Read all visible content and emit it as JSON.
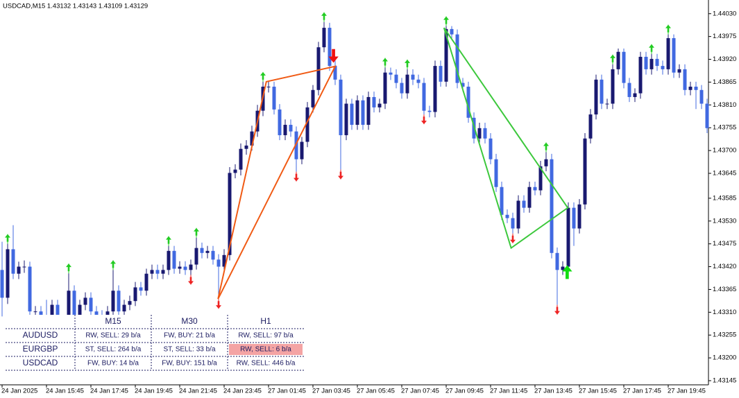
{
  "chart_data": {
    "type": "candlestick",
    "title": "USDCAD,M15  1.43132 1.43143 1.43109 1.43129",
    "bull_color": "#191970",
    "bear_color": "#4169e1",
    "ylim": [
      1.43135,
      1.44063
    ],
    "yticks": [
      {
        "value": 1.4403,
        "label": "1.44030"
      },
      {
        "value": 1.43975,
        "label": "1.43975"
      },
      {
        "value": 1.4392,
        "label": "1.43920"
      },
      {
        "value": 1.43865,
        "label": "1.43865"
      },
      {
        "value": 1.4381,
        "label": "1.43810"
      },
      {
        "value": 1.43755,
        "label": "1.43755"
      },
      {
        "value": 1.437,
        "label": "1.43700"
      },
      {
        "value": 1.43645,
        "label": "1.43645"
      },
      {
        "value": 1.43585,
        "label": "1.43585"
      },
      {
        "value": 1.4353,
        "label": "1.43530"
      },
      {
        "value": 1.43475,
        "label": "1.43475"
      },
      {
        "value": 1.4342,
        "label": "1.43420"
      },
      {
        "value": 1.43365,
        "label": "1.43365"
      },
      {
        "value": 1.4331,
        "label": "1.43310"
      },
      {
        "value": 1.43255,
        "label": "1.43255"
      },
      {
        "value": 1.432,
        "label": "1.43200"
      },
      {
        "value": 1.43145,
        "label": "1.43145"
      }
    ],
    "xticks": [
      {
        "value": 0,
        "label": "24 Jan 2025"
      },
      {
        "value": 8,
        "label": "24 Jan 15:45"
      },
      {
        "value": 16,
        "label": "24 Jan 17:45"
      },
      {
        "value": 24,
        "label": "24 Jan 19:45"
      },
      {
        "value": 32,
        "label": "24 Jan 21:45"
      },
      {
        "value": 40,
        "label": "24 Jan 23:45"
      },
      {
        "value": 48,
        "label": "27 Jan 01:45"
      },
      {
        "value": 56,
        "label": "27 Jan 03:45"
      },
      {
        "value": 64,
        "label": "27 Jan 05:45"
      },
      {
        "value": 72,
        "label": "27 Jan 07:45"
      },
      {
        "value": 80,
        "label": "27 Jan 09:45"
      },
      {
        "value": 88,
        "label": "27 Jan 11:45"
      },
      {
        "value": 96,
        "label": "27 Jan 13:45"
      },
      {
        "value": 104,
        "label": "27 Jan 15:45"
      },
      {
        "value": 112,
        "label": "27 Jan 17:45"
      },
      {
        "value": 120,
        "label": "27 Jan 19:45"
      }
    ],
    "candles": [
      [
        1.43412,
        1.4348,
        1.433,
        1.43345
      ],
      [
        1.43345,
        1.43475,
        1.4333,
        1.43462
      ],
      [
        1.43462,
        1.4352,
        1.4339,
        1.43403
      ],
      [
        1.43403,
        1.43432,
        1.4339,
        1.4342
      ],
      [
        1.4342,
        1.43435,
        1.43405,
        1.4342
      ],
      [
        1.4342,
        1.43432,
        1.433,
        1.43312
      ],
      [
        1.43312,
        1.43325,
        1.43295,
        1.43312
      ],
      [
        1.43312,
        1.43325,
        1.4328,
        1.43295
      ],
      [
        1.43295,
        1.4334,
        1.43275,
        1.43287
      ],
      [
        1.43287,
        1.4334,
        1.43275,
        1.43328
      ],
      [
        1.43328,
        1.4334,
        1.43265,
        1.43278
      ],
      [
        1.43278,
        1.433,
        1.43265,
        1.43287
      ],
      [
        1.43287,
        1.43404,
        1.43275,
        1.43362
      ],
      [
        1.43362,
        1.43375,
        1.43265,
        1.43278
      ],
      [
        1.43278,
        1.4334,
        1.43265,
        1.43328
      ],
      [
        1.43328,
        1.43358,
        1.43315,
        1.43345
      ],
      [
        1.43345,
        1.43358,
        1.433,
        1.43312
      ],
      [
        1.43312,
        1.43325,
        1.4329,
        1.43303
      ],
      [
        1.43303,
        1.43315,
        1.43283,
        1.43295
      ],
      [
        1.43295,
        1.43325,
        1.43283,
        1.43312
      ],
      [
        1.43312,
        1.43412,
        1.433,
        1.43362
      ],
      [
        1.43362,
        1.43375,
        1.433,
        1.43312
      ],
      [
        1.43312,
        1.4334,
        1.433,
        1.43328
      ],
      [
        1.43328,
        1.4335,
        1.43315,
        1.43337
      ],
      [
        1.43337,
        1.43383,
        1.43325,
        1.4337
      ],
      [
        1.4337,
        1.43383,
        1.4335,
        1.43362
      ],
      [
        1.43362,
        1.43415,
        1.4335,
        1.43403
      ],
      [
        1.43403,
        1.43425,
        1.4339,
        1.43412
      ],
      [
        1.43412,
        1.43425,
        1.4339,
        1.43403
      ],
      [
        1.43403,
        1.43425,
        1.4339,
        1.43412
      ],
      [
        1.43412,
        1.4347,
        1.434,
        1.43458
      ],
      [
        1.43458,
        1.4347,
        1.43403,
        1.43415
      ],
      [
        1.43415,
        1.43433,
        1.43403,
        1.4342
      ],
      [
        1.4342,
        1.43433,
        1.434,
        1.43412
      ],
      [
        1.43412,
        1.43437,
        1.434,
        1.43425
      ],
      [
        1.43425,
        1.4349,
        1.43413,
        1.43465
      ],
      [
        1.43465,
        1.43478,
        1.4344,
        1.43453
      ],
      [
        1.43453,
        1.4347,
        1.4344,
        1.43458
      ],
      [
        1.43458,
        1.4347,
        1.43425,
        1.43437
      ],
      [
        1.43437,
        1.4345,
        1.43342,
        1.4342
      ],
      [
        1.4342,
        1.43462,
        1.43408,
        1.43448
      ],
      [
        1.43448,
        1.4366,
        1.43435,
        1.43646
      ],
      [
        1.43646,
        1.43667,
        1.43633,
        1.43654
      ],
      [
        1.43654,
        1.43717,
        1.4364,
        1.43704
      ],
      [
        1.43704,
        1.43725,
        1.4369,
        1.43712
      ],
      [
        1.43712,
        1.4376,
        1.437,
        1.43746
      ],
      [
        1.43746,
        1.4381,
        1.43733,
        1.43796
      ],
      [
        1.43796,
        1.43866,
        1.43783,
        1.43854
      ],
      [
        1.43854,
        1.43866,
        1.4384,
        1.43854
      ],
      [
        1.43854,
        1.43866,
        1.43787,
        1.43799
      ],
      [
        1.43799,
        1.43812,
        1.43725,
        1.43737
      ],
      [
        1.43737,
        1.43775,
        1.43725,
        1.43762
      ],
      [
        1.43762,
        1.43775,
        1.43733,
        1.43746
      ],
      [
        1.43746,
        1.43758,
        1.43649,
        1.43679
      ],
      [
        1.43679,
        1.43733,
        1.43667,
        1.43721
      ],
      [
        1.43721,
        1.43817,
        1.43708,
        1.43804
      ],
      [
        1.43804,
        1.43858,
        1.43792,
        1.43846
      ],
      [
        1.43846,
        1.43962,
        1.43833,
        1.43949
      ],
      [
        1.43949,
        1.4401,
        1.43937,
        1.43996
      ],
      [
        1.43996,
        1.44008,
        1.43892,
        1.43904
      ],
      [
        1.43904,
        1.43917,
        1.43858,
        1.43871
      ],
      [
        1.43871,
        1.43883,
        1.43654,
        1.43737
      ],
      [
        1.43737,
        1.43825,
        1.43725,
        1.43813
      ],
      [
        1.43813,
        1.43825,
        1.4375,
        1.43762
      ],
      [
        1.43762,
        1.43833,
        1.4375,
        1.43821
      ],
      [
        1.43821,
        1.43833,
        1.4375,
        1.43762
      ],
      [
        1.43762,
        1.43842,
        1.4375,
        1.43829
      ],
      [
        1.43829,
        1.43842,
        1.43792,
        1.43804
      ],
      [
        1.43804,
        1.43825,
        1.43792,
        1.43813
      ],
      [
        1.43813,
        1.439,
        1.438,
        1.43888
      ],
      [
        1.43888,
        1.439,
        1.4387,
        1.43883
      ],
      [
        1.43883,
        1.43896,
        1.4385,
        1.43863
      ],
      [
        1.43863,
        1.43875,
        1.43825,
        1.43838
      ],
      [
        1.43838,
        1.43896,
        1.43825,
        1.43883
      ],
      [
        1.43883,
        1.43896,
        1.43858,
        1.43871
      ],
      [
        1.43871,
        1.43883,
        1.4385,
        1.43863
      ],
      [
        1.43863,
        1.43875,
        1.43787,
        1.43796
      ],
      [
        1.43796,
        1.43808,
        1.4378,
        1.43793
      ],
      [
        1.43793,
        1.43917,
        1.4378,
        1.43904
      ],
      [
        1.43904,
        1.43917,
        1.43854,
        1.43866
      ],
      [
        1.43866,
        1.44,
        1.43854,
        1.43993
      ],
      [
        1.43993,
        1.44,
        1.43967,
        1.4398
      ],
      [
        1.4398,
        1.43992,
        1.4385,
        1.43863
      ],
      [
        1.43863,
        1.43875,
        1.43842,
        1.43854
      ],
      [
        1.43854,
        1.43866,
        1.43767,
        1.43779
      ],
      [
        1.43779,
        1.43792,
        1.43717,
        1.43729
      ],
      [
        1.43729,
        1.43767,
        1.43717,
        1.43754
      ],
      [
        1.43754,
        1.43767,
        1.43717,
        1.43729
      ],
      [
        1.43729,
        1.43742,
        1.43667,
        1.43679
      ],
      [
        1.43679,
        1.43692,
        1.436,
        1.43612
      ],
      [
        1.43612,
        1.43625,
        1.43533,
        1.43545
      ],
      [
        1.43545,
        1.43558,
        1.43525,
        1.43537
      ],
      [
        1.43537,
        1.4355,
        1.435,
        1.43512
      ],
      [
        1.43512,
        1.43592,
        1.435,
        1.43579
      ],
      [
        1.43579,
        1.43592,
        1.4355,
        1.43562
      ],
      [
        1.43562,
        1.43625,
        1.4355,
        1.43612
      ],
      [
        1.43612,
        1.43625,
        1.43592,
        1.43604
      ],
      [
        1.43604,
        1.43675,
        1.43592,
        1.43662
      ],
      [
        1.43662,
        1.43696,
        1.4365,
        1.43679
      ],
      [
        1.43679,
        1.43692,
        1.4344,
        1.43453
      ],
      [
        1.43453,
        1.43466,
        1.43328,
        1.43412
      ],
      [
        1.43412,
        1.43433,
        1.434,
        1.4342
      ],
      [
        1.4342,
        1.43575,
        1.43408,
        1.43562
      ],
      [
        1.43562,
        1.43575,
        1.4347,
        1.43512
      ],
      [
        1.43512,
        1.43583,
        1.435,
        1.4357
      ],
      [
        1.4357,
        1.43742,
        1.43558,
        1.43729
      ],
      [
        1.43729,
        1.438,
        1.43717,
        1.43787
      ],
      [
        1.43787,
        1.43883,
        1.43775,
        1.43871
      ],
      [
        1.43871,
        1.43883,
        1.438,
        1.43813
      ],
      [
        1.43813,
        1.43825,
        1.438,
        1.43813
      ],
      [
        1.43813,
        1.43908,
        1.438,
        1.43896
      ],
      [
        1.43896,
        1.43946,
        1.43883,
        1.43938
      ],
      [
        1.43938,
        1.43946,
        1.4385,
        1.43863
      ],
      [
        1.43863,
        1.43875,
        1.43817,
        1.43829
      ],
      [
        1.43829,
        1.4385,
        1.43817,
        1.43838
      ],
      [
        1.43838,
        1.43938,
        1.43825,
        1.43926
      ],
      [
        1.43926,
        1.43938,
        1.43883,
        1.43896
      ],
      [
        1.43896,
        1.43933,
        1.43883,
        1.43921
      ],
      [
        1.43921,
        1.43933,
        1.43892,
        1.43904
      ],
      [
        1.43904,
        1.43917,
        1.43883,
        1.43896
      ],
      [
        1.43896,
        1.4398,
        1.43883,
        1.43971
      ],
      [
        1.43971,
        1.4398,
        1.43875,
        1.43888
      ],
      [
        1.43888,
        1.43908,
        1.43875,
        1.43896
      ],
      [
        1.43896,
        1.43908,
        1.43833,
        1.43846
      ],
      [
        1.43846,
        1.43866,
        1.43833,
        1.43854
      ],
      [
        1.43854,
        1.43866,
        1.438,
        1.43846
      ],
      [
        1.43846,
        1.43858,
        1.438,
        1.43813
      ],
      [
        1.43813,
        1.43825,
        1.43742,
        1.43754
      ]
    ],
    "fractals_up": [
      1,
      12,
      20,
      30,
      35,
      47,
      58,
      69,
      73,
      80,
      98,
      110,
      117,
      120
    ],
    "fractals_down": [
      34,
      39,
      53,
      61,
      76,
      92,
      100
    ],
    "up_color": "#22cc22",
    "down_color": "#ee2222",
    "signals": [
      {
        "index": 59.7,
        "price": 1.43925,
        "direction": "down",
        "color": "#ee1111"
      },
      {
        "index": 101.8,
        "price": 1.4341,
        "direction": "up",
        "color": "#11dd11"
      }
    ],
    "patterns": [
      {
        "color": "#f05a14",
        "points": [
          [
            38.9,
            1.43342
          ],
          [
            47.6,
            1.43866
          ],
          [
            60.0,
            1.43903
          ],
          [
            38.9,
            1.43342
          ]
        ]
      },
      {
        "color": "#3cc83c",
        "points": [
          [
            79.6,
            1.43996
          ],
          [
            101.9,
            1.43562
          ],
          [
            91.7,
            1.43465
          ],
          [
            79.6,
            1.43996
          ]
        ]
      }
    ],
    "table": {
      "columns": [
        "M15",
        "M30",
        "H1"
      ],
      "rows": [
        {
          "symbol": "AUDUSD",
          "cells": [
            "RW, SELL: 29 b/a",
            "FW, BUY: 21 b/a",
            "RW, SELL: 97 b/a"
          ]
        },
        {
          "symbol": "EURGBP",
          "cells": [
            "ST, SELL: 264 b/a",
            "ST, SELL: 33 b/a",
            "RW, SELL: 6 b/a"
          ]
        },
        {
          "symbol": "USDCAD",
          "cells": [
            "FW, BUY: 14 b/a",
            "FW, BUY: 151 b/a",
            "RW, SELL: 446 b/a"
          ]
        }
      ],
      "highlight": [
        1,
        2
      ],
      "highlight_color": "#f4a4a4"
    }
  }
}
